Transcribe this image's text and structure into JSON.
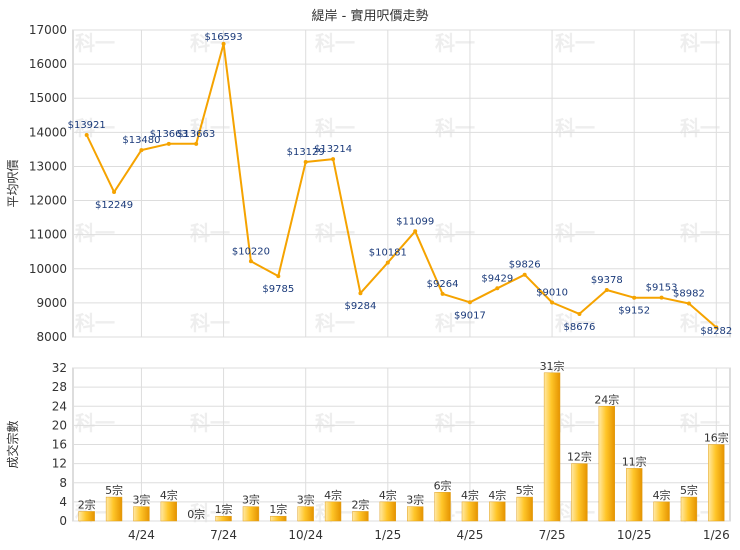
{
  "title": "緹岸 - 實用呎價走勢",
  "chart_data": [
    {
      "type": "line",
      "ylabel": "平均呎價",
      "ylim": [
        8000,
        17000
      ],
      "yticks": [
        8000,
        9000,
        10000,
        11000,
        12000,
        13000,
        14000,
        15000,
        16000,
        17000
      ],
      "color": "#f5a300",
      "x": [
        "2024-02",
        "2024-03",
        "2024-04",
        "2024-05",
        "2024-06",
        "2024-07",
        "2024-08",
        "2024-09",
        "2024-10",
        "2024-11",
        "2024-12",
        "2025-01",
        "2025-02",
        "2025-03",
        "2025-04",
        "2025-05",
        "2025-06",
        "2025-07",
        "2025-08",
        "2025-09",
        "2025-10",
        "2025-11",
        "2025-12",
        "2026-01"
      ],
      "values": [
        13921,
        12249,
        13480,
        13663,
        13663,
        16593,
        10220,
        9785,
        13129,
        13214,
        9284,
        10181,
        11099,
        9264,
        9017,
        9429,
        9826,
        9010,
        8676,
        9378,
        9152,
        9153,
        8982,
        8282
      ],
      "labels": [
        "$13921",
        "$12249",
        "$13480",
        "$13663",
        "$13663",
        "$16593",
        "$10220",
        "$9785",
        "$13129",
        "$13214",
        "$9284",
        "$10181",
        "$11099",
        "$9264",
        "$9017",
        "$9429",
        "$9826",
        "$9010",
        "$8676",
        "$9378",
        "$9152",
        "$9153",
        "$8982",
        "$8282"
      ]
    },
    {
      "type": "bar",
      "ylabel": "成交宗數",
      "ylim": [
        0,
        32
      ],
      "yticks": [
        0,
        4,
        8,
        12,
        16,
        20,
        24,
        28,
        32
      ],
      "color": "#f5a300",
      "categories": [
        "2024-02",
        "2024-03",
        "2024-04",
        "2024-05",
        "2024-06",
        "2024-07",
        "2024-08",
        "2024-09",
        "2024-10",
        "2024-11",
        "2024-12",
        "2025-01",
        "2025-02",
        "2025-03",
        "2025-04",
        "2025-05",
        "2025-06",
        "2025-07",
        "2025-08",
        "2025-09",
        "2025-10",
        "2025-11",
        "2025-12",
        "2026-01"
      ],
      "values": [
        2,
        5,
        3,
        4,
        0,
        1,
        3,
        1,
        3,
        4,
        2,
        4,
        3,
        6,
        4,
        4,
        5,
        31,
        12,
        24,
        11,
        4,
        5,
        16
      ],
      "labels": [
        "2宗",
        "5宗",
        "3宗",
        "4宗",
        "0宗",
        "1宗",
        "3宗",
        "1宗",
        "3宗",
        "4宗",
        "2宗",
        "4宗",
        "3宗",
        "6宗",
        "4宗",
        "4宗",
        "5宗",
        "31宗",
        "12宗",
        "24宗",
        "11宗",
        "4宗",
        "5宗",
        "16宗"
      ]
    }
  ],
  "xticks": [
    {
      "index": 2,
      "label": "4/24"
    },
    {
      "index": 5,
      "label": "7/24"
    },
    {
      "index": 8,
      "label": "10/24"
    },
    {
      "index": 11,
      "label": "1/25"
    },
    {
      "index": 14,
      "label": "4/25"
    },
    {
      "index": 17,
      "label": "7/25"
    },
    {
      "index": 20,
      "label": "10/25"
    },
    {
      "index": 23,
      "label": "1/26"
    }
  ],
  "watermark": "科一"
}
